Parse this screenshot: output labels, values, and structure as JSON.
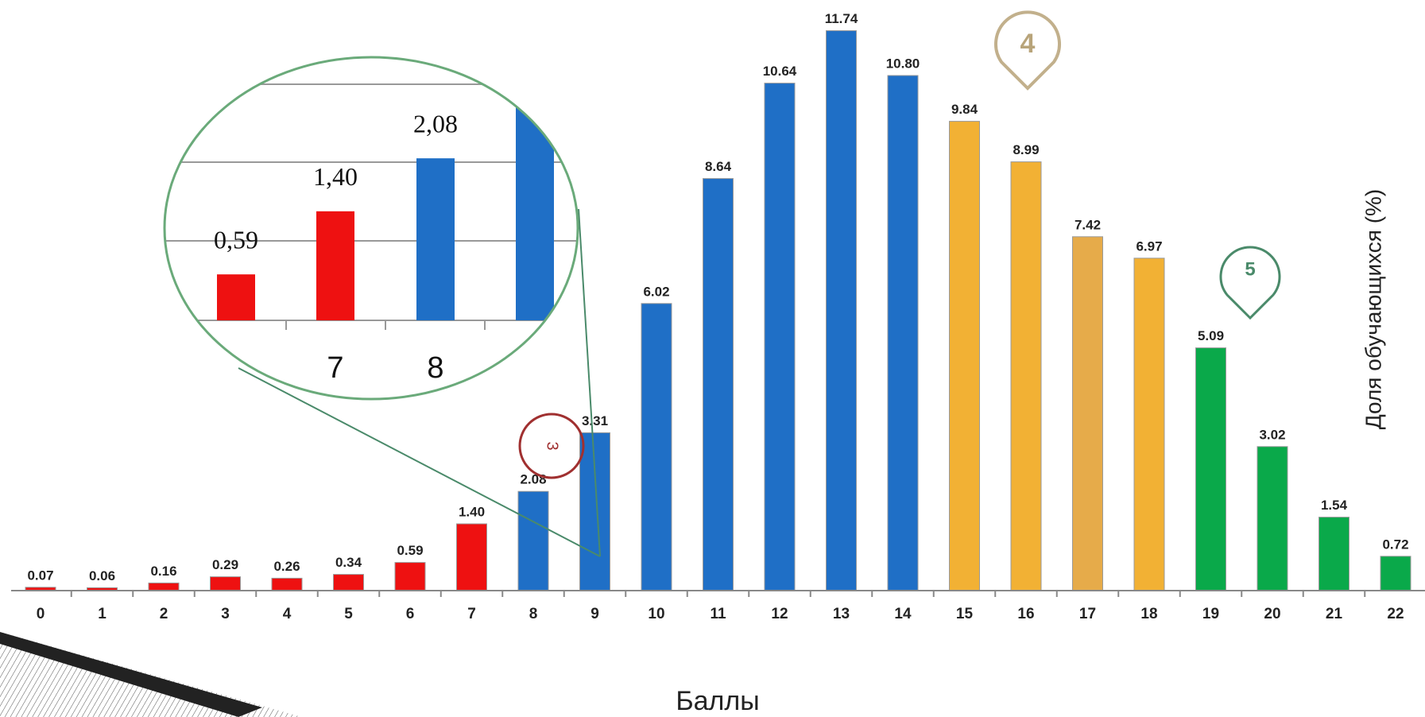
{
  "chart_data": {
    "type": "bar",
    "x_label": "Баллы",
    "y_label": "Доля обучающихся (%)",
    "categories": [
      "0",
      "1",
      "2",
      "3",
      "4",
      "5",
      "6",
      "7",
      "8",
      "9",
      "10",
      "11",
      "12",
      "13",
      "14",
      "15",
      "16",
      "17",
      "18",
      "19",
      "20",
      "21",
      "22"
    ],
    "values": [
      0.07,
      0.06,
      0.16,
      0.29,
      0.26,
      0.34,
      0.59,
      1.4,
      2.08,
      3.31,
      6.02,
      8.64,
      10.64,
      11.74,
      10.8,
      9.84,
      8.99,
      7.42,
      6.97,
      5.09,
      3.02,
      1.54,
      0.72
    ],
    "value_labels": [
      "0.07",
      "0.06",
      "0.16",
      "0.29",
      "0.26",
      "0.34",
      "0.59",
      "1.40",
      "2.08",
      "3.31",
      "6.02",
      "8.64",
      "10.64",
      "11.74",
      "10.80",
      "9.84",
      "8.99",
      "7.42",
      "6.97",
      "5.09",
      "3.02",
      "1.54",
      "0.72"
    ],
    "colors": [
      "#ee1111",
      "#ee1111",
      "#ee1111",
      "#ee1111",
      "#ee1111",
      "#ee1111",
      "#ee1111",
      "#ee1111",
      "#1f6fc6",
      "#1f6fc6",
      "#1f6fc6",
      "#1f6fc6",
      "#1f6fc6",
      "#1f6fc6",
      "#1f6fc6",
      "#f2b134",
      "#f2b134",
      "#e6ab4a",
      "#f2b134",
      "#0aa94a",
      "#0aa94a",
      "#0aa94a",
      "#0aa94a"
    ],
    "ylim": [
      0,
      12
    ],
    "inset": {
      "value_labels": [
        "0,59",
        "1,40",
        "2,08"
      ],
      "categories": [
        "7",
        "8"
      ]
    },
    "annotations": [
      "3",
      "4",
      "5"
    ]
  }
}
